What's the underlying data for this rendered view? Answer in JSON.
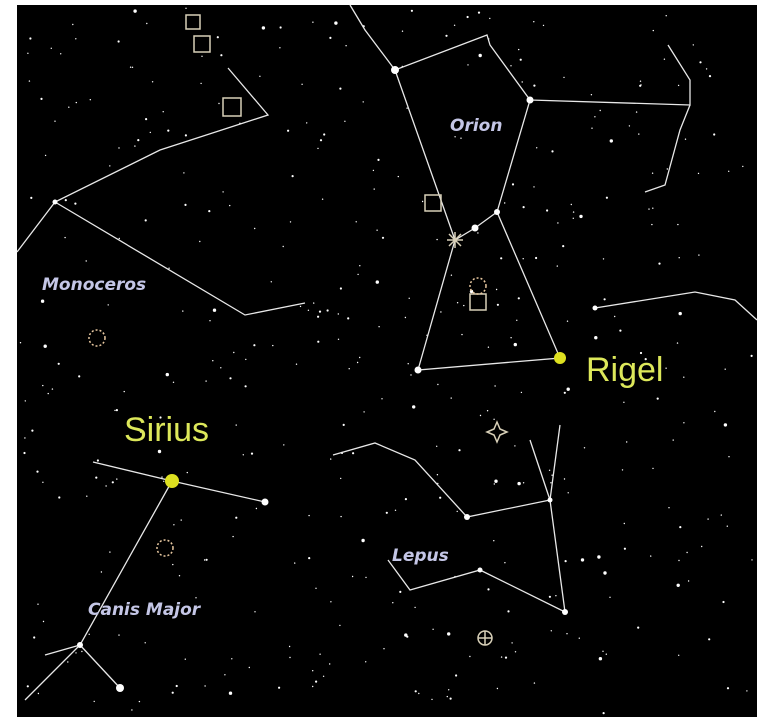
{
  "labels": {
    "constellations": [
      "Orion",
      "Monoceros",
      "Lepus",
      "Canis Major"
    ],
    "stars": [
      "Rigel",
      "Sirius"
    ]
  }
}
